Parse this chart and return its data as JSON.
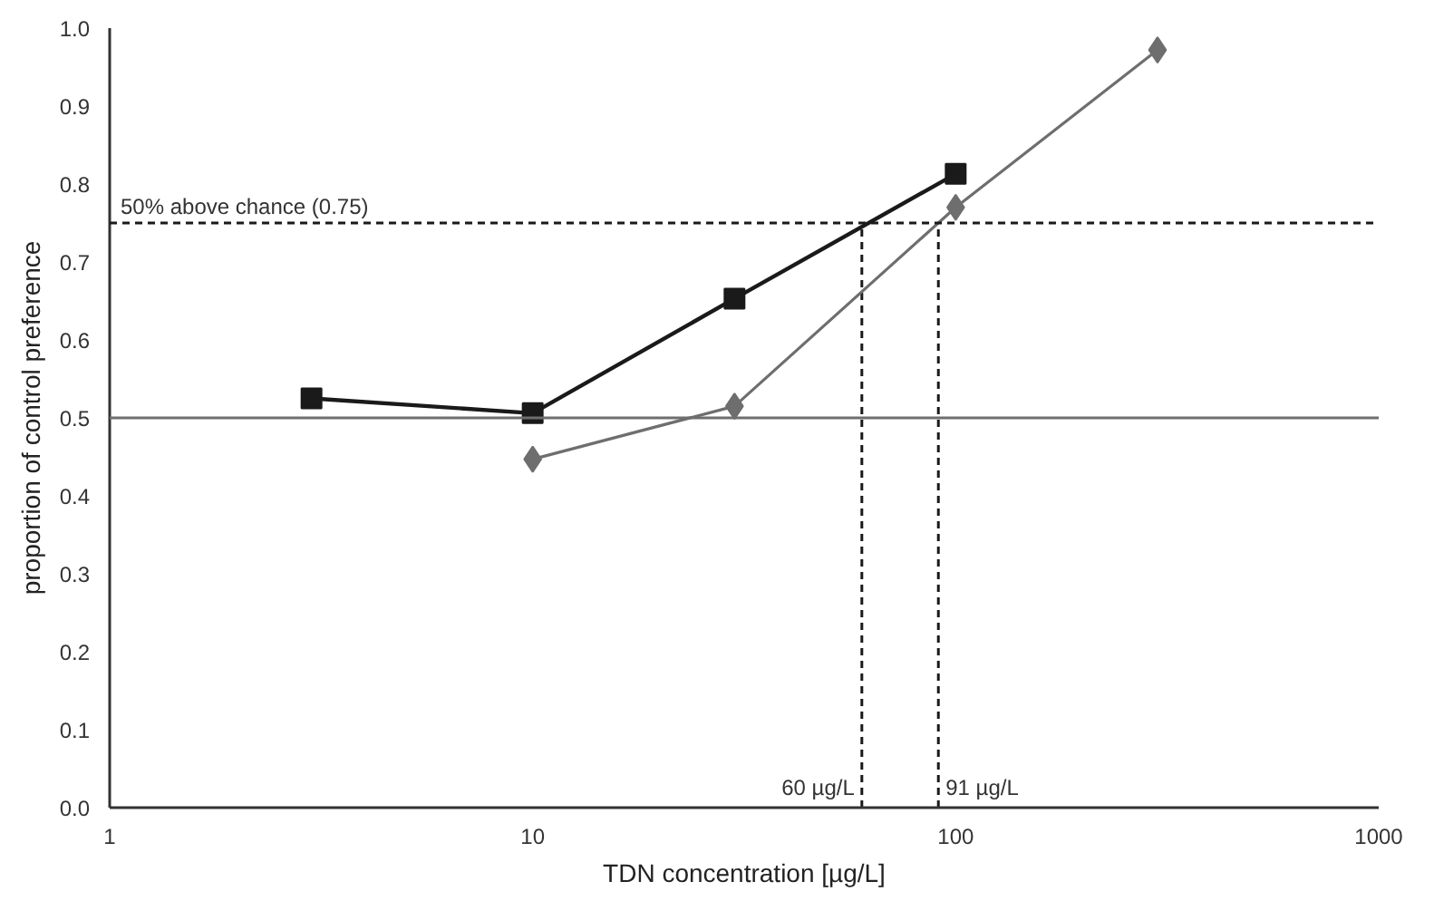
{
  "chart_data": {
    "type": "line",
    "xlabel": "TDN concentration [µg/L]",
    "ylabel": "proportion of control preference",
    "log": "x",
    "grid": false,
    "xlim": [
      1,
      1000
    ],
    "xticks": [
      1,
      10,
      100,
      1000
    ],
    "ylim": [
      0,
      1
    ],
    "yticks": [
      {
        "value": 0,
        "label": "0.0"
      },
      {
        "value": 0.1,
        "label": "0.1"
      },
      {
        "value": 0.2,
        "label": "0.2"
      },
      {
        "value": 0.3,
        "label": "0.3"
      },
      {
        "value": 0.4,
        "label": "0.4"
      },
      {
        "value": 0.5,
        "label": "0.5"
      },
      {
        "value": 0.6,
        "label": "0.6"
      },
      {
        "value": 0.7,
        "label": "0.7"
      },
      {
        "value": 0.8,
        "label": "0.8"
      },
      {
        "value": 0.9,
        "label": "0.9"
      },
      {
        "value": 1,
        "label": "1.0"
      }
    ],
    "series": [
      {
        "color": "#1a1a1a",
        "marker": "square",
        "x": [
          3,
          10,
          30,
          100
        ],
        "values": [
          0.525,
          0.506,
          0.653,
          0.813
        ]
      },
      {
        "color": "#6e6e6e",
        "marker": "diamond",
        "x": [
          10,
          30,
          100,
          300
        ],
        "values": [
          0.447,
          0.515,
          0.77,
          0.972
        ]
      }
    ],
    "ref_lines": [
      {
        "axis": "y",
        "value": 0.5,
        "color": "#6e6e6e",
        "line_style": "solid"
      },
      {
        "axis": "y",
        "value": 0.75,
        "label": "50% above chance (0.75)",
        "color": "#1a1a1a",
        "line_style": "dashed"
      },
      {
        "axis": "x",
        "value": 60,
        "label": "60 µg/L",
        "color": "#1a1a1a",
        "line_style": "dashed"
      },
      {
        "axis": "x",
        "value": 91,
        "label": "91 µg/L",
        "color": "#1a1a1a",
        "line_style": "dashed"
      }
    ]
  }
}
